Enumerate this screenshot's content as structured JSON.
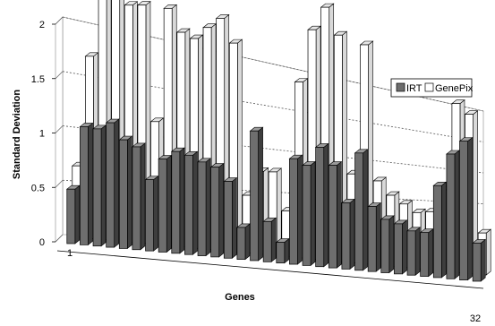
{
  "chart_data": {
    "type": "bar",
    "style": "3d-clustered",
    "xlabel": "Genes",
    "ylabel": "Standard Deviation",
    "ylim": [
      0,
      2
    ],
    "yticks": [
      "0",
      "0.5",
      "1",
      "1.5",
      "2"
    ],
    "xtick_labels": [
      "1",
      "32"
    ],
    "grid": "dotted-horizontal",
    "legend_position": "right",
    "series": [
      {
        "name": "IRT",
        "color": "#6e6e6e",
        "values": [
          0.32,
          0.7,
          0.7,
          0.75,
          0.66,
          0.63,
          0.44,
          0.58,
          0.64,
          0.63,
          0.6,
          0.58,
          0.5,
          0.21,
          0.86,
          0.27,
          0.14,
          0.72,
          0.69,
          0.83,
          0.72,
          0.47,
          0.84,
          0.47,
          0.39,
          0.37,
          0.33,
          0.33,
          0.7,
          0.96,
          1.08,
          0.3
        ]
      },
      {
        "name": "GenePix",
        "color": "#ffffff",
        "values": [
          0.42,
          1.08,
          1.55,
          1.48,
          1.44,
          1.46,
          0.76,
          1.48,
          1.35,
          1.33,
          1.42,
          1.5,
          1.36,
          0.38,
          0.55,
          0.56,
          0.31,
          1.2,
          1.58,
          1.76,
          1.59,
          0.63,
          1.57,
          0.61,
          0.52,
          0.47,
          0.42,
          0.44,
          0.62,
          1.3,
          1.24,
          0.33
        ]
      }
    ]
  }
}
